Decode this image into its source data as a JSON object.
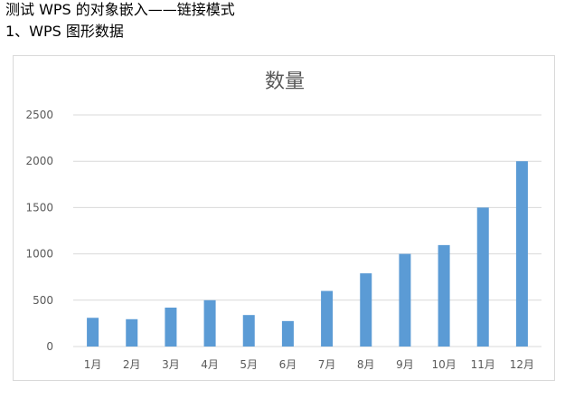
{
  "document": {
    "line1": "测试 WPS 的对象嵌入——链接模式",
    "line2": "1、WPS 图形数据"
  },
  "chart_data": {
    "type": "bar",
    "title": "数量",
    "xlabel": "",
    "ylabel": "",
    "categories": [
      "1月",
      "2月",
      "3月",
      "4月",
      "5月",
      "6月",
      "7月",
      "8月",
      "9月",
      "10月",
      "11月",
      "12月"
    ],
    "values": [
      310,
      295,
      420,
      500,
      340,
      275,
      600,
      790,
      1000,
      1095,
      1500,
      2000
    ],
    "ylim": [
      0,
      2500
    ],
    "yticks": [
      0,
      500,
      1000,
      1500,
      2000,
      2500
    ],
    "grid": true,
    "legend": "none",
    "bar_color": "#5b9bd5",
    "grid_color": "#d9d9d9",
    "title_color": "#595959",
    "tick_color": "#595959"
  }
}
